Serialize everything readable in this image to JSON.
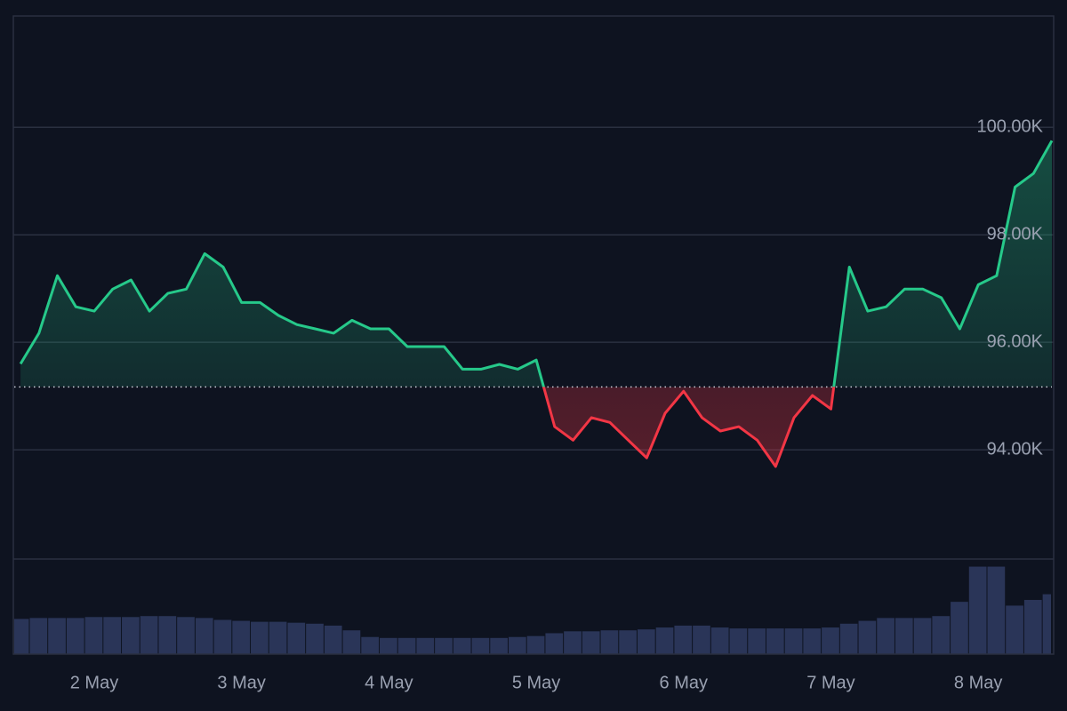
{
  "chart_data": {
    "type": "baseline",
    "x": [
      1.5,
      1.625,
      1.75,
      1.875,
      2,
      2.125,
      2.25,
      2.375,
      2.5,
      2.625,
      2.75,
      2.875,
      3,
      3.125,
      3.25,
      3.375,
      3.5,
      3.625,
      3.75,
      3.875,
      4,
      4.125,
      4.25,
      4.375,
      4.5,
      4.625,
      4.75,
      4.875,
      5,
      5.125,
      5.25,
      5.375,
      5.5,
      5.625,
      5.75,
      5.875,
      6,
      6.125,
      6.25,
      6.375,
      6.5,
      6.625,
      6.75,
      6.875,
      7,
      7.125,
      7.25,
      7.375,
      7.5,
      7.625,
      7.75,
      7.875,
      8,
      8.125,
      8.25,
      8.375,
      8.5
    ],
    "values": [
      95.6,
      96.17,
      97.24,
      96.66,
      96.58,
      96.99,
      97.16,
      96.58,
      96.91,
      96.99,
      97.65,
      97.4,
      96.74,
      96.74,
      96.5,
      96.33,
      96.25,
      96.17,
      96.41,
      96.25,
      96.25,
      95.92,
      95.92,
      95.92,
      95.5,
      95.5,
      95.59,
      95.5,
      95.67,
      94.43,
      94.18,
      94.6,
      94.51,
      94.18,
      93.85,
      94.68,
      95.09,
      94.6,
      94.35,
      94.43,
      94.18,
      93.69,
      94.6,
      95.01,
      94.76,
      97.4,
      96.58,
      96.66,
      96.99,
      96.99,
      96.83,
      96.25,
      97.07,
      97.24,
      98.89,
      99.14,
      99.75
    ],
    "volume": [
      37,
      38,
      38,
      38,
      39,
      39,
      39,
      40,
      40,
      39,
      38,
      36,
      35,
      34,
      34,
      33,
      32,
      30,
      25,
      18,
      17,
      17,
      17,
      17,
      17,
      17,
      17,
      18,
      19,
      22,
      24,
      24,
      25,
      25,
      26,
      28,
      30,
      30,
      28,
      27,
      27,
      27,
      27,
      27,
      28,
      32,
      35,
      38,
      38,
      38,
      40,
      55,
      92,
      92,
      51,
      57,
      63
    ],
    "volume_ylim": [
      0,
      100
    ],
    "volume_color": "#2a3558",
    "base_value": 95.17,
    "up_color": "#26c98a",
    "down_color": "#f23645",
    "xlim": [
      1.457,
      8.5
    ],
    "xticks": [
      {
        "value": 2,
        "label": "2 May"
      },
      {
        "value": 3,
        "label": "3 May"
      },
      {
        "value": 4,
        "label": "4 May"
      },
      {
        "value": 5,
        "label": "5 May"
      },
      {
        "value": 6,
        "label": "6 May"
      },
      {
        "value": 7,
        "label": "7 May"
      },
      {
        "value": 8,
        "label": "8 May"
      }
    ],
    "ylim": [
      90.2,
      102.07
    ],
    "yticks": [
      {
        "value": 94,
        "label": "94.00K"
      },
      {
        "value": 96,
        "label": "96.00K"
      },
      {
        "value": 98,
        "label": "98.00K"
      },
      {
        "value": 100,
        "label": "100.00K"
      }
    ],
    "grid": true
  }
}
